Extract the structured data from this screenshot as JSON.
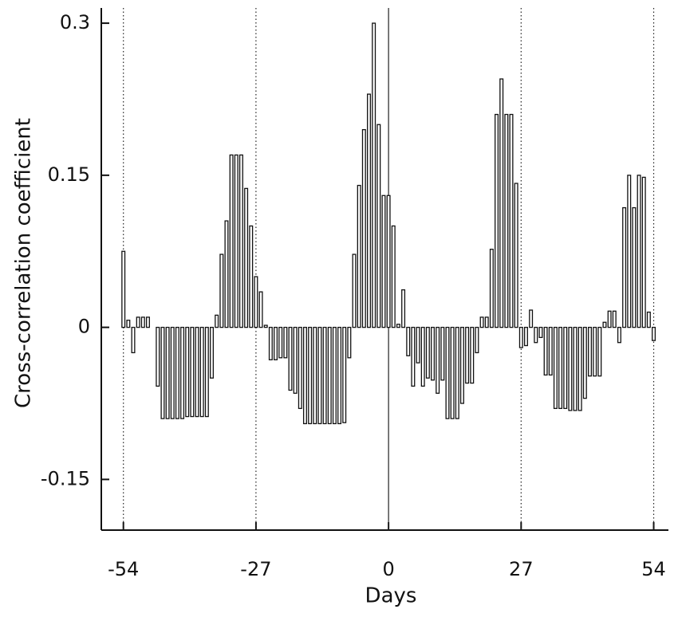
{
  "chart_data": {
    "type": "bar",
    "xlabel": "Days",
    "ylabel": "Cross-correlation coefficient",
    "x": [
      -54,
      -53,
      -52,
      -51,
      -50,
      -49,
      -48,
      -47,
      -46,
      -45,
      -44,
      -43,
      -42,
      -41,
      -40,
      -39,
      -38,
      -37,
      -36,
      -35,
      -34,
      -33,
      -32,
      -31,
      -30,
      -29,
      -28,
      -27,
      -26,
      -25,
      -24,
      -23,
      -22,
      -21,
      -20,
      -19,
      -18,
      -17,
      -16,
      -15,
      -14,
      -13,
      -12,
      -11,
      -10,
      -9,
      -8,
      -7,
      -6,
      -5,
      -4,
      -3,
      -2,
      -1,
      0,
      1,
      2,
      3,
      4,
      5,
      6,
      7,
      8,
      9,
      10,
      11,
      12,
      13,
      14,
      15,
      16,
      17,
      18,
      19,
      20,
      21,
      22,
      23,
      24,
      25,
      26,
      27,
      28,
      29,
      30,
      31,
      32,
      33,
      34,
      35,
      36,
      37,
      38,
      39,
      40,
      41,
      42,
      43,
      44,
      45,
      46,
      47,
      48,
      49,
      50,
      51,
      52,
      53,
      54
    ],
    "values": [
      0.075,
      0.007,
      -0.025,
      0.01,
      0.01,
      0.01,
      0,
      -0.058,
      -0.09,
      -0.09,
      -0.09,
      -0.09,
      -0.09,
      -0.088,
      -0.088,
      -0.088,
      -0.088,
      -0.088,
      -0.05,
      0.012,
      0.072,
      0.105,
      0.17,
      0.17,
      0.17,
      0.137,
      0.1,
      0.05,
      0.035,
      0.002,
      -0.032,
      -0.032,
      -0.03,
      -0.03,
      -0.062,
      -0.065,
      -0.08,
      -0.095,
      -0.095,
      -0.095,
      -0.095,
      -0.095,
      -0.095,
      -0.095,
      -0.095,
      -0.094,
      -0.03,
      0.072,
      0.14,
      0.195,
      0.23,
      0.3,
      0.2,
      0.13,
      0.13,
      0.1,
      0.003,
      0.037,
      -0.028,
      -0.058,
      -0.035,
      -0.058,
      -0.05,
      -0.052,
      -0.065,
      -0.052,
      -0.09,
      -0.09,
      -0.09,
      -0.075,
      -0.055,
      -0.055,
      -0.025,
      0.01,
      0.01,
      0.077,
      0.21,
      0.245,
      0.21,
      0.21,
      0.142,
      -0.02,
      -0.018,
      0.017,
      -0.015,
      -0.01,
      -0.047,
      -0.047,
      -0.08,
      -0.08,
      -0.08,
      -0.082,
      -0.082,
      -0.082,
      -0.07,
      -0.048,
      -0.048,
      -0.048,
      0.005,
      0.016,
      0.016,
      -0.015,
      0.118,
      0.15,
      0.118,
      0.15,
      0.148,
      0.015,
      -0.013
    ],
    "color": "#ffffff",
    "xlim": [
      -58.5,
      57
    ],
    "xticks": [
      -54,
      -27,
      0,
      27,
      54
    ],
    "ylim": [
      -0.2,
      0.315
    ],
    "yticks": [
      -0.15,
      0,
      0.15,
      0.3
    ],
    "grid": true
  }
}
